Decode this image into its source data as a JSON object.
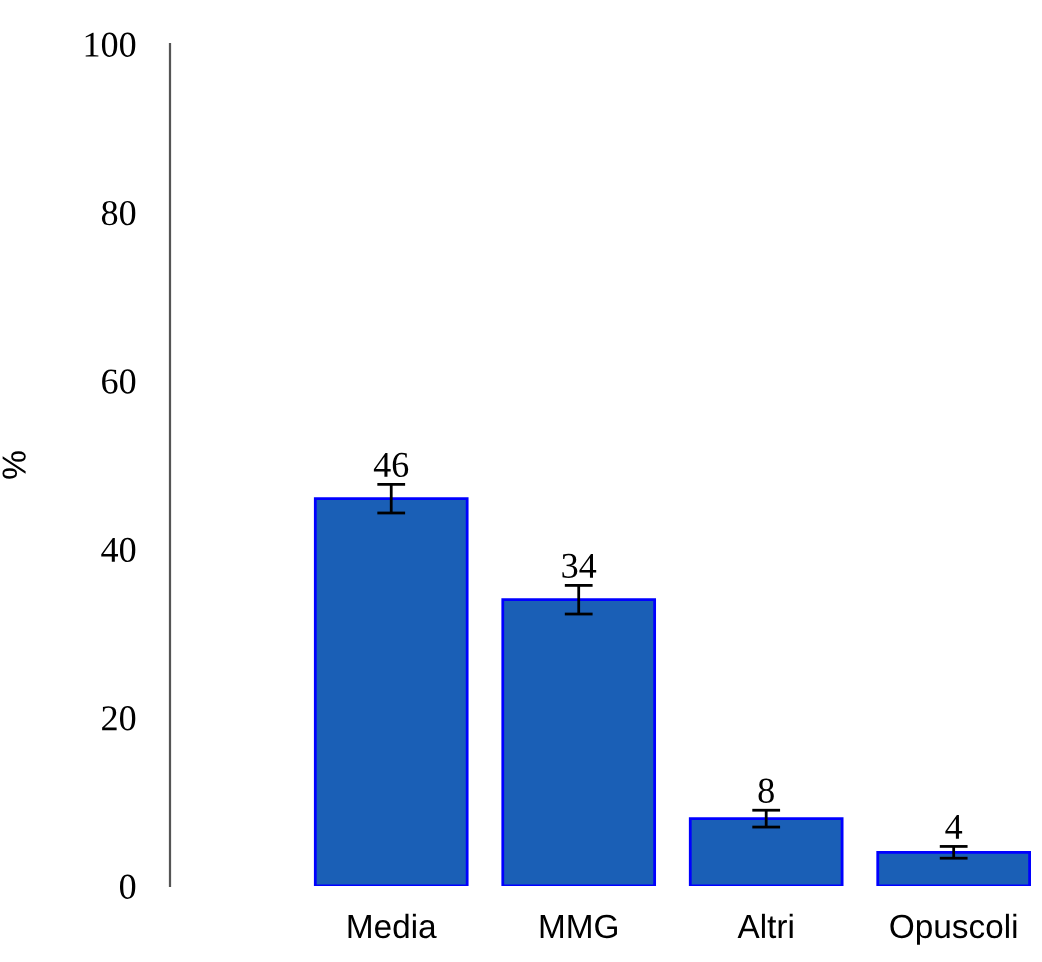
{
  "chart_data": {
    "type": "bar",
    "ylabel": "%",
    "categories": [
      "Media",
      "MMG",
      "Altri",
      "Opuscoli"
    ],
    "values": [
      46,
      34,
      8,
      4
    ],
    "errors": [
      1.7,
      1.7,
      1.0,
      0.7
    ],
    "color": "#1a5fb6",
    "ylim": [
      0,
      100
    ],
    "yticks": [
      0,
      20,
      40,
      60,
      80,
      100
    ],
    "data_labels": true,
    "grid": false
  }
}
